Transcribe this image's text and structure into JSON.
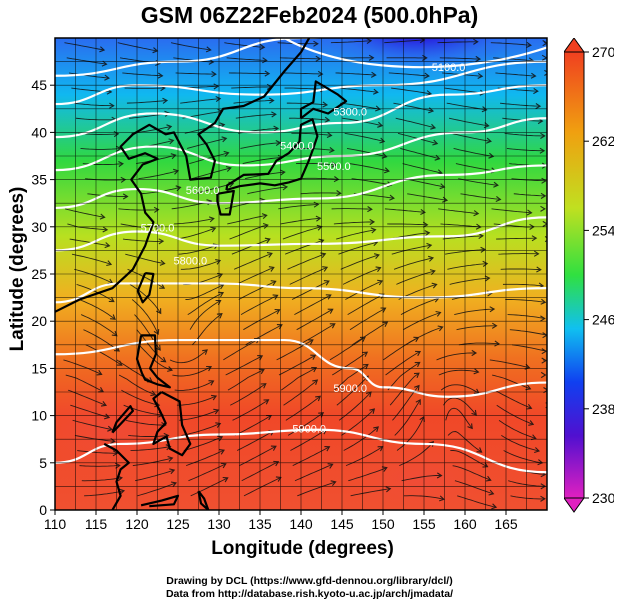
{
  "title": "GSM 06Z22Feb2024 (500.0hPa)",
  "xlabel": "Longitude (degrees)",
  "ylabel": "Latitude  (degrees)",
  "credits": {
    "line1": "Drawing by DCL (https://www.gfd-dennou.org/library/dcl/)",
    "line2": "Data from http://database.rish.kyoto-u.ac.jp/arch/jmadata/"
  },
  "chart_data": {
    "type": "heatmap",
    "description_of_field": "temperature shading with geopotential height contours and wind streamlines",
    "xlim": [
      110,
      170
    ],
    "ylim": [
      0,
      50
    ],
    "x_ticks": [
      110,
      115,
      120,
      125,
      130,
      135,
      140,
      145,
      150,
      155,
      160,
      165
    ],
    "y_ticks": [
      0,
      5,
      10,
      15,
      20,
      25,
      30,
      35,
      40,
      45
    ],
    "grid": true,
    "colorbar": {
      "ticks": [
        230,
        238,
        246,
        254,
        262,
        270
      ],
      "range": [
        230,
        270
      ],
      "colors": [
        "#e020c0",
        "#5010d0",
        "#1040f0",
        "#10c0f0",
        "#30e040",
        "#c0e020",
        "#f0a010",
        "#f04020"
      ]
    },
    "contour_labels": [
      {
        "text": "5100.0",
        "lon": 158,
        "lat": 46.5
      },
      {
        "text": "5300.0",
        "lon": 146,
        "lat": 41.8
      },
      {
        "text": "5400.0",
        "lon": 139.5,
        "lat": 38.2
      },
      {
        "text": "5500.0",
        "lon": 144,
        "lat": 36
      },
      {
        "text": "5600.0",
        "lon": 128,
        "lat": 33.5
      },
      {
        "text": "5700.0",
        "lon": 122.5,
        "lat": 29.5
      },
      {
        "text": "5800.0",
        "lon": 126.5,
        "lat": 26
      },
      {
        "text": "5900.0",
        "lon": 146,
        "lat": 12.5
      },
      {
        "text": "5900.0",
        "lon": 141,
        "lat": 8.2
      }
    ]
  }
}
